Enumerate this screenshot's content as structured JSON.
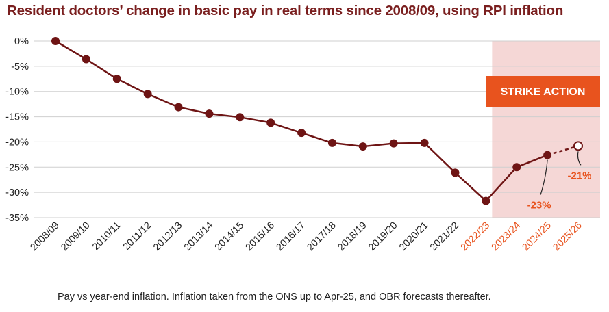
{
  "chart_data": {
    "type": "line",
    "title": "Resident doctors’ change in basic pay in real terms since 2008/09, using RPI inflation",
    "footnote": "Pay vs year-end inflation. Inflation taken from the ONS up to Apr-25, and OBR forecasts thereafter.",
    "categories": [
      "2008/09",
      "2009/10",
      "2010/11",
      "2011/12",
      "2012/13",
      "2013/14",
      "2014/15",
      "2015/16",
      "2016/17",
      "2017/18",
      "2018/19",
      "2019/20",
      "2020/21",
      "2021/22",
      "2022/23",
      "2023/24",
      "2024/25",
      "2025/26"
    ],
    "highlighted_categories": [
      "2022/23",
      "2023/24",
      "2024/25",
      "2025/26"
    ],
    "series": [
      {
        "values": [
          0,
          -3.6,
          -7.5,
          -10.5,
          -13.1,
          -14.4,
          -15.1,
          -16.2,
          -18.2,
          -20.2,
          -20.9,
          -20.3,
          -20.2,
          -26.1,
          -31.7,
          -25.0,
          -22.6,
          -20.8
        ],
        "forecast_from_index": 16
      }
    ],
    "ylim": [
      -35,
      0
    ],
    "yticks": [
      0,
      -5,
      -10,
      -15,
      -20,
      -25,
      -30,
      -35
    ],
    "ytick_labels": [
      "0%",
      "-5%",
      "-10%",
      "-15%",
      "-20%",
      "-25%",
      "-30%",
      "-35%"
    ],
    "grid": true,
    "shaded_region": {
      "from": "2022/23",
      "to": "2025/26",
      "label": "STRIKE ACTION"
    },
    "annotations": [
      {
        "category": "2024/25",
        "text": "-23%"
      },
      {
        "category": "2025/26",
        "text": "-21%"
      }
    ],
    "colors": {
      "title": "#7a1f1f",
      "line": "#6e1414",
      "highlight": "#e8531e",
      "shade": "#f5d7d6",
      "grid": "#cfcfcf"
    }
  }
}
